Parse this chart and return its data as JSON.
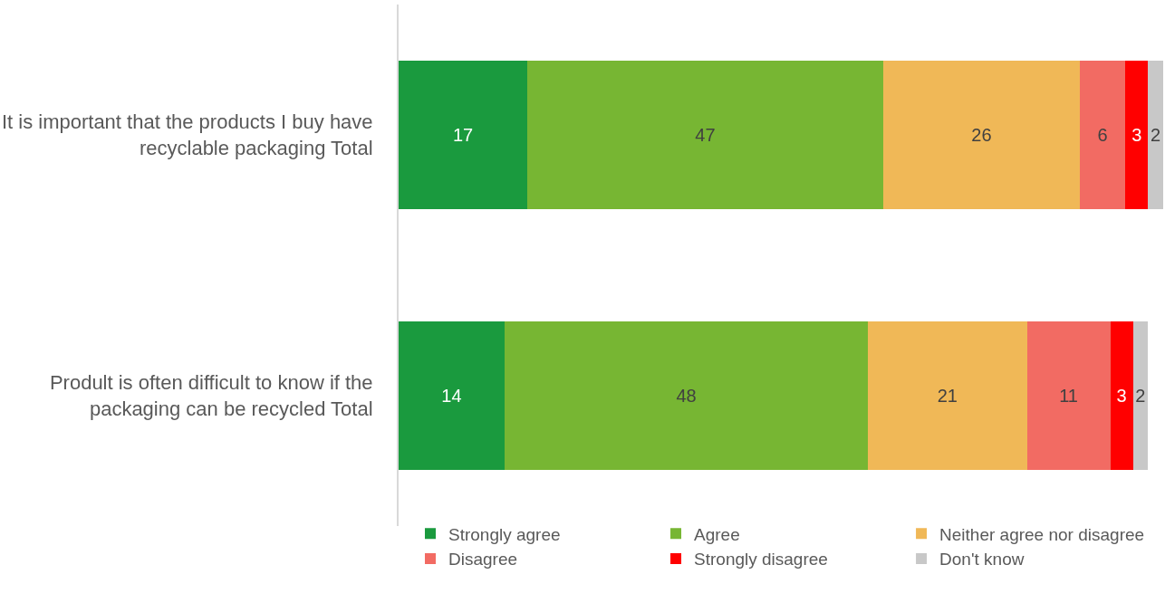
{
  "chart_data": {
    "type": "bar",
    "orientation": "horizontal",
    "stacked": true,
    "data_labels": true,
    "legend": "bottom",
    "categories": [
      "It is important that the products I buy have recyclable packaging Total",
      "Prodult is often difficult to know if the packaging can be recycled Total"
    ],
    "series": [
      {
        "name": "Strongly agree",
        "color": "#1a9a3e",
        "values": [
          17,
          14
        ]
      },
      {
        "name": "Agree",
        "color": "#77b633",
        "values": [
          47,
          48
        ]
      },
      {
        "name": "Neither agree nor disagree",
        "color": "#f0b857",
        "values": [
          26,
          21
        ]
      },
      {
        "name": "Disagree",
        "color": "#f26b63",
        "values": [
          6,
          11
        ]
      },
      {
        "name": "Strongly disagree",
        "color": "#ff0000",
        "values": [
          3,
          3
        ]
      },
      {
        "name": "Don't know",
        "color": "#c8c8c8",
        "values": [
          2,
          2
        ]
      }
    ]
  }
}
